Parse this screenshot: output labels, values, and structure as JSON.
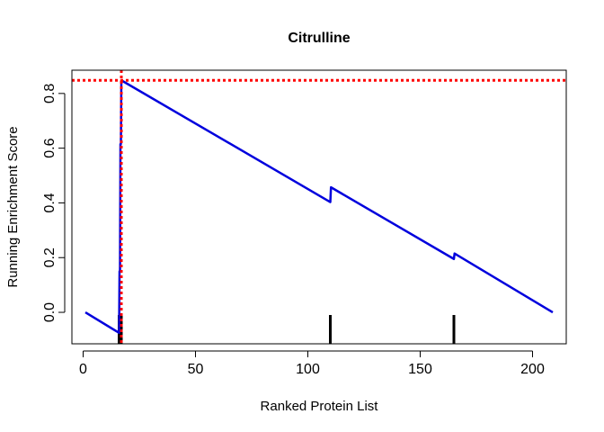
{
  "chart_data": {
    "type": "line",
    "title": "Citrulline",
    "xlabel": "Ranked Protein List",
    "ylabel": "Running Enrichment Score",
    "xlim": [
      -5,
      215
    ],
    "ylim": [
      -0.115,
      0.885
    ],
    "xticks": [
      0,
      50,
      100,
      150,
      200
    ],
    "yticks": [
      0.0,
      0.2,
      0.4,
      0.6,
      0.8
    ],
    "xtick_labels": [
      "0",
      "50",
      "100",
      "150",
      "200"
    ],
    "ytick_labels": [
      "0.0",
      "0.2",
      "0.4",
      "0.6",
      "0.8"
    ],
    "series": [
      {
        "color": "#0000dd",
        "points": [
          [
            1,
            0.0
          ],
          [
            16,
            -0.075
          ],
          [
            16.2,
            0.15
          ],
          [
            16.4,
            0.15
          ],
          [
            16.6,
            0.615
          ],
          [
            16.8,
            0.615
          ],
          [
            17,
            0.848
          ],
          [
            110,
            0.403
          ],
          [
            110.3,
            0.457
          ],
          [
            165,
            0.195
          ],
          [
            165.3,
            0.215
          ],
          [
            209,
            0.0
          ]
        ]
      }
    ],
    "hits": [
      16,
      17,
      110,
      165
    ],
    "max_es": 0.848,
    "max_position": 17,
    "reference_color": "#ff0000",
    "hit_color": "#000000"
  }
}
